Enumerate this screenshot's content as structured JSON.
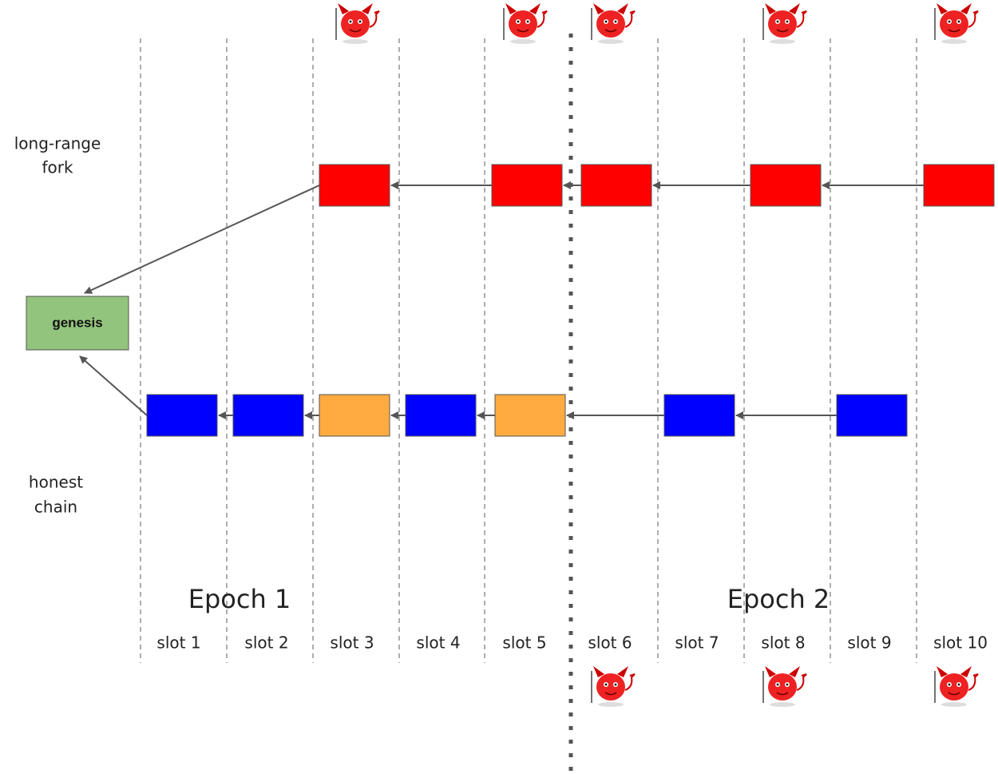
{
  "labels": {
    "fork": [
      "long-range",
      "fork"
    ],
    "honest": [
      "honest",
      "chain"
    ]
  },
  "genesis": "genesis",
  "slots": [
    "slot 1",
    "slot 2",
    "slot 3",
    "slot 4",
    "slot 5",
    "slot 6",
    "slot 7",
    "slot 8",
    "slot 9",
    "slot 10"
  ],
  "epochs": [
    "Epoch 1",
    "Epoch 2"
  ]
}
